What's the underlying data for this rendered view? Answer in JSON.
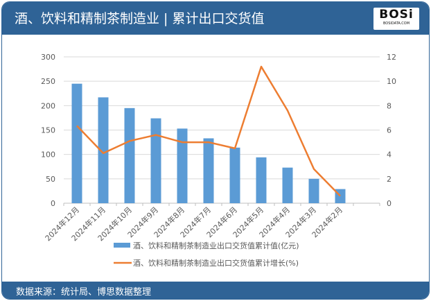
{
  "header": {
    "title": "酒、饮料和精制茶制造业 | 累计出口交货值",
    "logo_text": "BOSi",
    "logo_sub": "BOSIDATA.COM"
  },
  "footer": {
    "source": "数据来源：统计局、博思数据整理"
  },
  "colors": {
    "bar": "#5b9bd5",
    "line": "#ed7d31",
    "header": "#2f6396"
  },
  "chart_data": {
    "type": "bar+line",
    "categories": [
      "2024年12月",
      "2024年11月",
      "2024年10月",
      "2024年9月",
      "2024年8月",
      "2024年7月",
      "2024年6月",
      "2024年5月",
      "2024年4月",
      "2024年3月",
      "2024年2月"
    ],
    "series": [
      {
        "name": "酒、饮料和精制茶制造业出口交货值累计值(亿元)",
        "type": "bar",
        "axis": "left",
        "values": [
          245,
          217,
          195,
          174,
          153,
          133,
          114,
          94,
          73,
          50,
          29
        ]
      },
      {
        "name": "酒、饮料和精制茶制造业出口交货值累计增长(%)",
        "type": "line",
        "axis": "right",
        "values": [
          6.35,
          4.1,
          5.1,
          5.6,
          5.0,
          5.0,
          4.5,
          11.2,
          7.6,
          2.8,
          0.6
        ]
      }
    ],
    "yleft": {
      "ylim": [
        0,
        300
      ],
      "ticks": [
        "0",
        "50",
        "100",
        "150",
        "200",
        "250",
        "300"
      ]
    },
    "yright": {
      "ylim": [
        0,
        12
      ],
      "ticks": [
        "0",
        "2",
        "4",
        "6",
        "8",
        "10",
        "12"
      ]
    },
    "grid": true,
    "legend": "bottom"
  }
}
